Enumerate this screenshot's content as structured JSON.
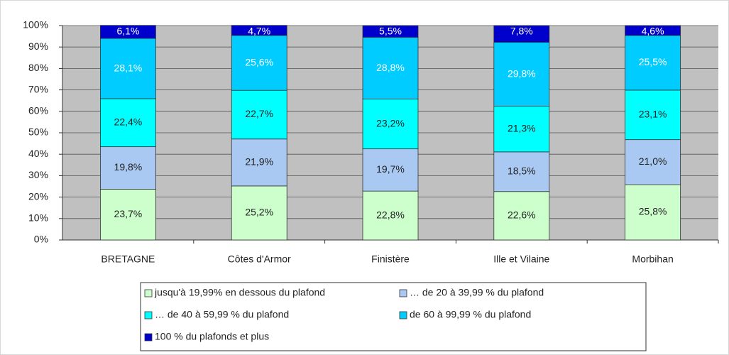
{
  "chart_data": {
    "type": "stacked_bar",
    "categories": [
      "BRETAGNE",
      "Côtes d'Armor",
      "Finistère",
      "Ille et Vilaine",
      "Morbihan"
    ],
    "series": [
      {
        "name": "jusqu'à 19,99% en dessous du plafond",
        "color": "#ccffcc",
        "values": [
          23.7,
          25.2,
          22.8,
          22.6,
          25.8
        ],
        "value_labels": [
          "23,7%",
          "25,2%",
          "22,8%",
          "22,6%",
          "25,8%"
        ]
      },
      {
        "name": "… de 20 à 39,99 % du plafond",
        "color": "#a9c9f2",
        "values": [
          19.8,
          21.9,
          19.7,
          18.5,
          21.0
        ],
        "value_labels": [
          "19,8%",
          "21,9%",
          "19,7%",
          "18,5%",
          "21,0%"
        ]
      },
      {
        "name": "… de 40 à 59,99 % du plafond",
        "color": "#00ffff",
        "values": [
          22.4,
          22.7,
          23.2,
          21.3,
          23.1
        ],
        "value_labels": [
          "22,4%",
          "22,7%",
          "23,2%",
          "21,3%",
          "23,1%"
        ]
      },
      {
        "name": "de 60 à 99,99 % du plafond",
        "color": "#00ccff",
        "values": [
          28.1,
          25.6,
          28.8,
          29.8,
          25.5
        ],
        "value_labels": [
          "28,1%",
          "25,6%",
          "28,8%",
          "29,8%",
          "25,5%"
        ]
      },
      {
        "name": "100 % du plafonds et plus",
        "color": "#0000cc",
        "values": [
          6.1,
          4.7,
          5.5,
          7.8,
          4.6
        ],
        "value_labels": [
          "6,1%",
          "4,7%",
          "5,5%",
          "7,8%",
          "4,6%"
        ]
      }
    ],
    "ylim": [
      0,
      100
    ],
    "yticks": [
      {
        "value": 0,
        "label": "0%"
      },
      {
        "value": 10,
        "label": "10%"
      },
      {
        "value": 20,
        "label": "20%"
      },
      {
        "value": 30,
        "label": "30%"
      },
      {
        "value": 40,
        "label": "40%"
      },
      {
        "value": 50,
        "label": "50%"
      },
      {
        "value": 60,
        "label": "60%"
      },
      {
        "value": 70,
        "label": "70%"
      },
      {
        "value": 80,
        "label": "80%"
      },
      {
        "value": 90,
        "label": "90%"
      },
      {
        "value": 100,
        "label": "100%"
      }
    ],
    "grid": true
  }
}
